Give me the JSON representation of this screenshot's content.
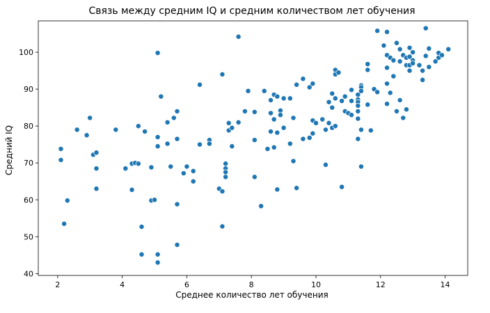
{
  "chart_data": {
    "type": "scatter",
    "title": "Связь между средним IQ и средним количеством лет обучения",
    "xlabel": "Среднее количество лет обучения",
    "ylabel": "Средний IQ",
    "xlim": [
      1.4,
      14.7
    ],
    "ylim": [
      39.5,
      108.5
    ],
    "xticks": [
      2,
      4,
      6,
      8,
      10,
      12,
      14
    ],
    "yticks": [
      40,
      50,
      60,
      70,
      80,
      90,
      100
    ],
    "grid": false,
    "legend": "none",
    "marker_color": "#1f77b4",
    "marker_edge_color": "#ffffff",
    "points": [
      [
        2.1,
        73.8
      ],
      [
        2.1,
        70.8
      ],
      [
        2.2,
        53.5
      ],
      [
        2.3,
        59.8
      ],
      [
        2.6,
        79.0
      ],
      [
        2.9,
        77.5
      ],
      [
        3.0,
        82.2
      ],
      [
        3.1,
        72.2
      ],
      [
        3.2,
        72.8
      ],
      [
        3.2,
        68.5
      ],
      [
        3.2,
        63.0
      ],
      [
        3.8,
        79.0
      ],
      [
        4.1,
        68.5
      ],
      [
        4.3,
        69.8
      ],
      [
        4.3,
        62.7
      ],
      [
        4.4,
        70.0
      ],
      [
        4.5,
        69.8
      ],
      [
        4.5,
        80.0
      ],
      [
        4.6,
        52.7
      ],
      [
        4.6,
        45.2
      ],
      [
        4.7,
        78.5
      ],
      [
        4.9,
        68.8
      ],
      [
        4.9,
        59.8
      ],
      [
        5.0,
        60.0
      ],
      [
        5.1,
        99.8
      ],
      [
        5.1,
        77.0
      ],
      [
        5.1,
        74.5
      ],
      [
        5.1,
        45.2
      ],
      [
        5.1,
        43.0
      ],
      [
        5.2,
        88.0
      ],
      [
        5.4,
        81.0
      ],
      [
        5.4,
        75.2
      ],
      [
        5.5,
        69.0
      ],
      [
        5.6,
        82.2
      ],
      [
        5.7,
        84.0
      ],
      [
        5.7,
        76.5
      ],
      [
        5.7,
        58.8
      ],
      [
        5.7,
        47.8
      ],
      [
        5.9,
        67.2
      ],
      [
        6.0,
        69.0
      ],
      [
        6.2,
        67.8
      ],
      [
        6.2,
        65.0
      ],
      [
        6.4,
        91.2
      ],
      [
        6.4,
        75.0
      ],
      [
        6.7,
        76.2
      ],
      [
        6.7,
        75.2
      ],
      [
        7.0,
        63.0
      ],
      [
        7.1,
        94.0
      ],
      [
        7.1,
        62.3
      ],
      [
        7.1,
        52.8
      ],
      [
        7.2,
        69.8
      ],
      [
        7.2,
        68.5
      ],
      [
        7.2,
        67.5
      ],
      [
        7.2,
        66.2
      ],
      [
        7.3,
        80.8
      ],
      [
        7.3,
        78.8
      ],
      [
        7.4,
        79.5
      ],
      [
        7.4,
        74.5
      ],
      [
        7.6,
        104.2
      ],
      [
        7.6,
        81.0
      ],
      [
        7.8,
        84.0
      ],
      [
        7.9,
        89.5
      ],
      [
        8.1,
        83.8
      ],
      [
        8.1,
        76.2
      ],
      [
        8.1,
        66.2
      ],
      [
        8.3,
        58.3
      ],
      [
        8.4,
        89.5
      ],
      [
        8.5,
        73.8
      ],
      [
        8.6,
        87.0
      ],
      [
        8.6,
        83.5
      ],
      [
        8.6,
        78.5
      ],
      [
        8.7,
        88.5
      ],
      [
        8.7,
        81.8
      ],
      [
        8.7,
        74.2
      ],
      [
        8.8,
        88.0
      ],
      [
        8.8,
        78.2
      ],
      [
        8.8,
        62.8
      ],
      [
        8.9,
        84.2
      ],
      [
        8.9,
        83.0
      ],
      [
        9.0,
        87.5
      ],
      [
        9.0,
        79.5
      ],
      [
        9.2,
        87.5
      ],
      [
        9.2,
        75.2
      ],
      [
        9.3,
        82.2
      ],
      [
        9.3,
        70.5
      ],
      [
        9.4,
        91.2
      ],
      [
        9.4,
        63.2
      ],
      [
        9.6,
        92.8
      ],
      [
        9.6,
        76.5
      ],
      [
        9.8,
        90.5
      ],
      [
        9.8,
        76.8
      ],
      [
        9.9,
        91.5
      ],
      [
        9.9,
        81.5
      ],
      [
        9.9,
        78.0
      ],
      [
        10.0,
        80.8
      ],
      [
        10.2,
        81.8
      ],
      [
        10.3,
        79.0
      ],
      [
        10.3,
        69.5
      ],
      [
        10.4,
        86.5
      ],
      [
        10.4,
        80.8
      ],
      [
        10.5,
        88.8
      ],
      [
        10.5,
        85.0
      ],
      [
        10.5,
        79.5
      ],
      [
        10.6,
        95.2
      ],
      [
        10.6,
        94.0
      ],
      [
        10.6,
        87.5
      ],
      [
        10.6,
        80.0
      ],
      [
        10.7,
        94.5
      ],
      [
        10.8,
        86.8
      ],
      [
        10.8,
        63.5
      ],
      [
        10.9,
        88.0
      ],
      [
        10.9,
        84.0
      ],
      [
        11.0,
        83.5
      ],
      [
        11.1,
        89.8
      ],
      [
        11.1,
        86.8
      ],
      [
        11.1,
        83.0
      ],
      [
        11.3,
        88.5
      ],
      [
        11.3,
        87.2
      ],
      [
        11.3,
        86.5
      ],
      [
        11.3,
        85.5
      ],
      [
        11.3,
        84.0
      ],
      [
        11.3,
        82.0
      ],
      [
        11.3,
        76.5
      ],
      [
        11.4,
        91.0
      ],
      [
        11.4,
        90.5
      ],
      [
        11.4,
        89.5
      ],
      [
        11.4,
        79.0
      ],
      [
        11.4,
        69.0
      ],
      [
        11.6,
        96.8
      ],
      [
        11.6,
        95.2
      ],
      [
        11.6,
        85.8
      ],
      [
        11.7,
        78.8
      ],
      [
        11.8,
        90.0
      ],
      [
        11.9,
        105.8
      ],
      [
        11.9,
        89.2
      ],
      [
        12.1,
        101.8
      ],
      [
        12.2,
        105.5
      ],
      [
        12.2,
        99.2
      ],
      [
        12.2,
        95.8
      ],
      [
        12.2,
        91.5
      ],
      [
        12.2,
        86.0
      ],
      [
        12.3,
        98.5
      ],
      [
        12.3,
        89.0
      ],
      [
        12.4,
        97.8
      ],
      [
        12.4,
        93.5
      ],
      [
        12.5,
        102.5
      ],
      [
        12.5,
        84.0
      ],
      [
        12.6,
        100.8
      ],
      [
        12.6,
        97.5
      ],
      [
        12.6,
        87.0
      ],
      [
        12.7,
        99.2
      ],
      [
        12.7,
        82.2
      ],
      [
        12.8,
        98.5
      ],
      [
        12.8,
        96.5
      ],
      [
        12.8,
        84.5
      ],
      [
        12.9,
        101.2
      ],
      [
        12.9,
        98.8
      ],
      [
        12.9,
        96.5
      ],
      [
        12.9,
        95.0
      ],
      [
        13.0,
        100.0
      ],
      [
        13.0,
        97.8
      ],
      [
        13.0,
        97.0
      ],
      [
        13.2,
        96.5
      ],
      [
        13.3,
        95.0
      ],
      [
        13.3,
        92.5
      ],
      [
        13.4,
        106.5
      ],
      [
        13.4,
        99.0
      ],
      [
        13.5,
        101.0
      ],
      [
        13.5,
        96.0
      ],
      [
        13.7,
        97.5
      ],
      [
        13.8,
        99.8
      ],
      [
        13.8,
        98.5
      ],
      [
        13.9,
        99.2
      ],
      [
        14.1,
        100.8
      ]
    ]
  }
}
